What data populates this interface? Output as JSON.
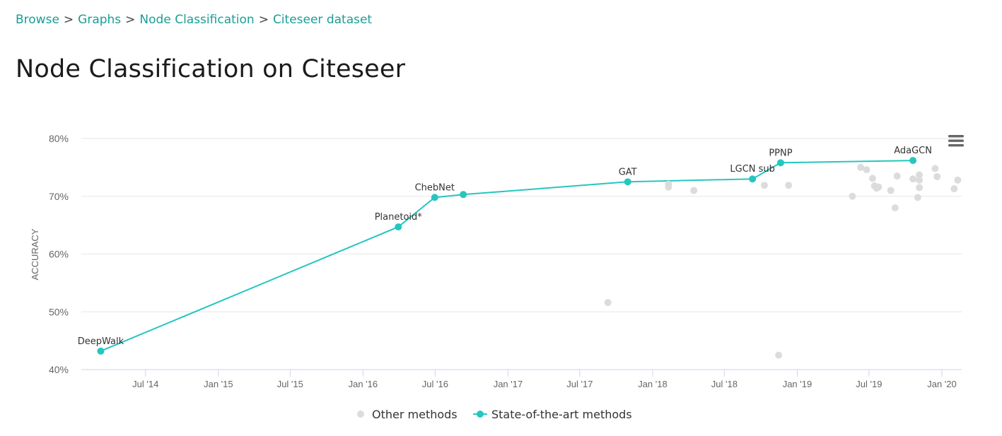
{
  "breadcrumb": {
    "items": [
      "Browse",
      "Graphs",
      "Node Classification",
      "Citeseer dataset"
    ],
    "separator": ">"
  },
  "page": {
    "title": "Node Classification on Citeseer"
  },
  "chart_data": {
    "type": "scatter",
    "title": "",
    "xlabel": "",
    "ylabel": "ACCURACY",
    "ylim": [
      40,
      80
    ],
    "y_ticks": [
      "40%",
      "50%",
      "60%",
      "70%",
      "80%"
    ],
    "xlim": [
      "2014-01-20",
      "2020-02-20"
    ],
    "x_ticks": [
      "Jul '14",
      "Jan '15",
      "Jul '15",
      "Jan '16",
      "Jul '16",
      "Jan '17",
      "Jul '17",
      "Jan '18",
      "Jul '18",
      "Jan '19",
      "Jul '19",
      "Jan '20"
    ],
    "x_tick_dates": [
      "2014-07-01",
      "2015-01-01",
      "2015-07-01",
      "2016-01-01",
      "2016-07-01",
      "2017-01-01",
      "2017-07-01",
      "2018-01-01",
      "2018-07-01",
      "2019-01-01",
      "2019-07-01",
      "2020-01-01"
    ],
    "grid": true,
    "legend_position": "bottom-center",
    "series": [
      {
        "name": "Other methods",
        "color": "#dcdcdc",
        "points": [
          {
            "x": "2017-09-10",
            "y": 51.6
          },
          {
            "x": "2018-02-10",
            "y": 71.6
          },
          {
            "x": "2018-02-10",
            "y": 72.1
          },
          {
            "x": "2018-04-15",
            "y": 71.0
          },
          {
            "x": "2018-10-10",
            "y": 71.9
          },
          {
            "x": "2018-11-15",
            "y": 42.5
          },
          {
            "x": "2018-12-10",
            "y": 71.9
          },
          {
            "x": "2019-05-20",
            "y": 70.0
          },
          {
            "x": "2019-06-10",
            "y": 75.0
          },
          {
            "x": "2019-06-25",
            "y": 74.6
          },
          {
            "x": "2019-07-10",
            "y": 73.1
          },
          {
            "x": "2019-07-15",
            "y": 71.8
          },
          {
            "x": "2019-07-20",
            "y": 71.4
          },
          {
            "x": "2019-07-25",
            "y": 71.6
          },
          {
            "x": "2019-08-25",
            "y": 71.0
          },
          {
            "x": "2019-09-05",
            "y": 68.0
          },
          {
            "x": "2019-09-10",
            "y": 73.5
          },
          {
            "x": "2019-10-20",
            "y": 73.0
          },
          {
            "x": "2019-11-05",
            "y": 73.7
          },
          {
            "x": "2019-11-05",
            "y": 72.8
          },
          {
            "x": "2019-11-05",
            "y": 71.5
          },
          {
            "x": "2019-11-01",
            "y": 69.8
          },
          {
            "x": "2019-12-15",
            "y": 74.8
          },
          {
            "x": "2019-12-20",
            "y": 73.4
          },
          {
            "x": "2020-02-01",
            "y": 71.3
          },
          {
            "x": "2020-02-10",
            "y": 72.8
          }
        ]
      },
      {
        "name": "State-of-the-art methods",
        "color": "#26c6c0",
        "points": [
          {
            "x": "2014-03-10",
            "y": 43.2,
            "label": "DeepWalk"
          },
          {
            "x": "2016-03-30",
            "y": 64.7,
            "label": "Planetoid*"
          },
          {
            "x": "2016-06-30",
            "y": 69.8,
            "label": "ChebNet"
          },
          {
            "x": "2016-09-10",
            "y": 70.3,
            "label": ""
          },
          {
            "x": "2017-10-30",
            "y": 72.5,
            "label": "GAT"
          },
          {
            "x": "2018-09-10",
            "y": 73.0,
            "label": "LGCN sub"
          },
          {
            "x": "2018-11-20",
            "y": 75.8,
            "label": "PPNP"
          },
          {
            "x": "2019-10-20",
            "y": 76.2,
            "label": "AdaGCN"
          }
        ]
      }
    ]
  }
}
